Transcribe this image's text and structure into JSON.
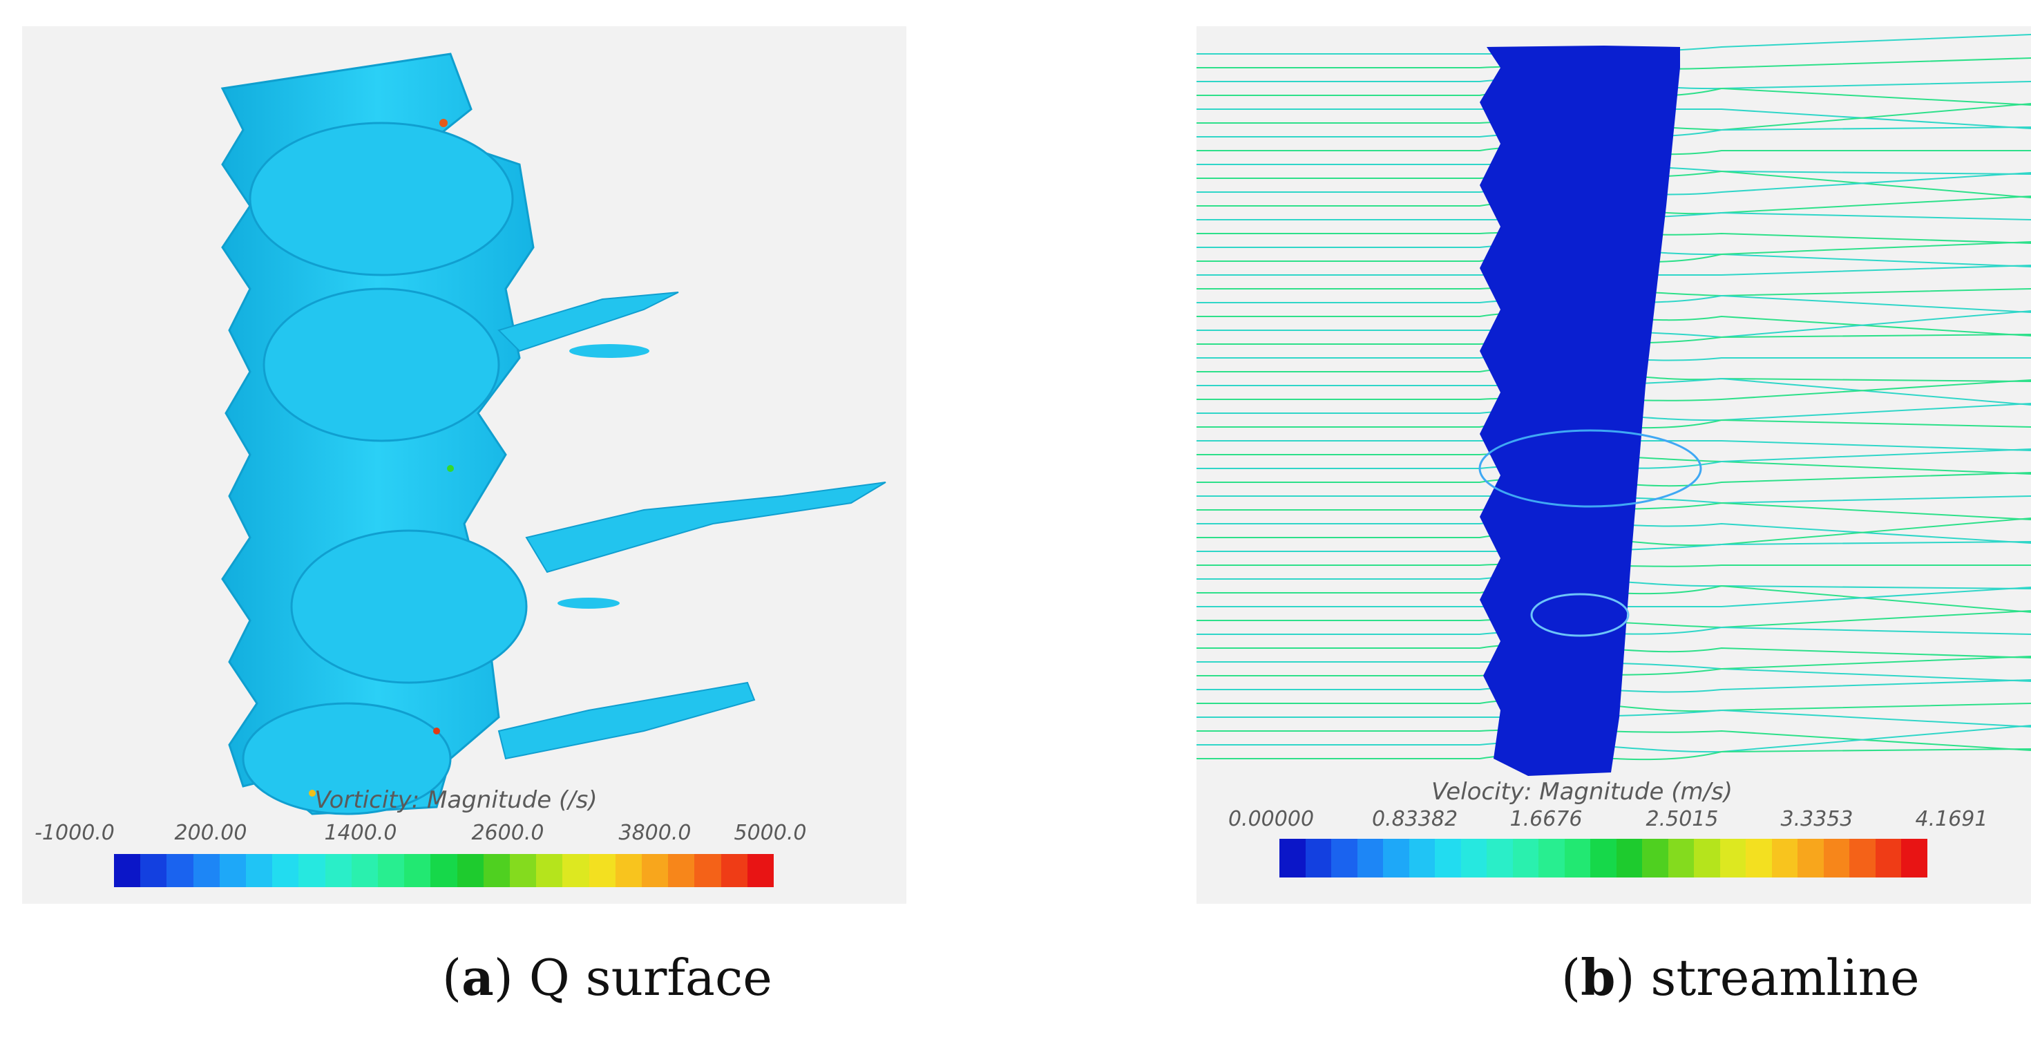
{
  "panel_a": {
    "colorbar_title": "Vorticity: Magnitude (/s)",
    "ticks": [
      "-1000.0",
      "200.00",
      "1400.0",
      "2600.0",
      "3800.0",
      "5000.0"
    ],
    "caption_letter": "a",
    "caption_text": "Q surface",
    "surface_color": "#1ec8f0"
  },
  "panel_b": {
    "colorbar_title": "Velocity: Magnitude (m/s)",
    "ticks": [
      "0.00000",
      "0.83382",
      "1.6676",
      "2.5015",
      "3.3353",
      "4.1691"
    ],
    "caption_letter": "b",
    "caption_text": "streamline",
    "body_color": "#0a1fd0"
  },
  "colormap": [
    "#0b16c8",
    "#1340e0",
    "#1a63ef",
    "#1d86f6",
    "#1ea8f8",
    "#20c4f5",
    "#22dcf0",
    "#26e8e0",
    "#2aeec8",
    "#2af0ae",
    "#28ee90",
    "#22e872",
    "#16d84a",
    "#1ecb2e",
    "#4fd020",
    "#84db1e",
    "#b5e41c",
    "#dde820",
    "#f3e020",
    "#f8c41e",
    "#f8a61c",
    "#f7861a",
    "#f46218",
    "#ef3c16",
    "#e81414"
  ]
}
